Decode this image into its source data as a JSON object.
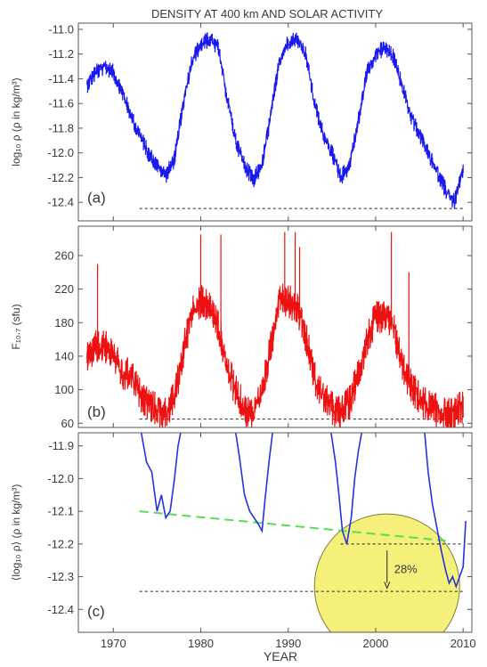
{
  "figure": {
    "title": "DENSITY AT 400 km AND SOLAR ACTIVITY",
    "xlabel": "YEAR"
  },
  "chart_data": [
    {
      "panel": "(a)",
      "type": "line",
      "ylabel": "log₁₀ ρ (ρ in kg/m³)",
      "ylim": [
        -12.55,
        -10.95
      ],
      "yticks": [
        -11.0,
        -11.2,
        -11.4,
        -11.6,
        -11.8,
        -12.0,
        -12.2,
        -12.4
      ],
      "ytick_labels": [
        "-11.0",
        "-11.2",
        "-11.4",
        "-11.6",
        "-11.8",
        "-12.0",
        "-12.2",
        "-12.4"
      ],
      "xlim": [
        1966,
        2011
      ],
      "color": "#1a1aee",
      "noise": 0.1,
      "x": [
        1967,
        1968,
        1969,
        1970,
        1971,
        1972,
        1973,
        1974,
        1975,
        1976,
        1977,
        1978,
        1979,
        1980,
        1981,
        1982,
        1983,
        1984,
        1985,
        1986,
        1987,
        1988,
        1989,
        1990,
        1991,
        1992,
        1993,
        1994,
        1995,
        1996,
        1997,
        1998,
        1999,
        2000,
        2001,
        2002,
        2003,
        2004,
        2005,
        2006,
        2007,
        2008,
        2009,
        2010
      ],
      "y": [
        -11.45,
        -11.35,
        -11.3,
        -11.35,
        -11.5,
        -11.7,
        -11.85,
        -12.0,
        -12.1,
        -12.18,
        -12.05,
        -11.6,
        -11.25,
        -11.12,
        -11.08,
        -11.15,
        -11.55,
        -11.9,
        -12.1,
        -12.22,
        -12.1,
        -11.7,
        -11.25,
        -11.1,
        -11.08,
        -11.2,
        -11.6,
        -11.85,
        -12.0,
        -12.2,
        -12.1,
        -11.75,
        -11.35,
        -11.2,
        -11.15,
        -11.22,
        -11.45,
        -11.7,
        -11.85,
        -12.0,
        -12.15,
        -12.3,
        -12.4,
        -12.15
      ],
      "reference_line": {
        "y": -12.45,
        "from_x": 1973,
        "to_x": 2010
      },
      "label_text": "(a)"
    },
    {
      "panel": "(b)",
      "type": "line",
      "ylabel": "F₁₀.₇ (sfu)",
      "ylim": [
        55,
        295
      ],
      "yticks": [
        60,
        100,
        140,
        180,
        220,
        260
      ],
      "ytick_labels": [
        "60",
        "100",
        "140",
        "180",
        "220",
        "260"
      ],
      "xlim": [
        1966,
        2011
      ],
      "color": "#ee1111",
      "noise": 30,
      "x": [
        1967,
        1968,
        1969,
        1970,
        1971,
        1972,
        1973,
        1974,
        1975,
        1976,
        1977,
        1978,
        1979,
        1980,
        1981,
        1982,
        1983,
        1984,
        1985,
        1986,
        1987,
        1988,
        1989,
        1990,
        1991,
        1992,
        1993,
        1994,
        1995,
        1996,
        1997,
        1998,
        1999,
        2000,
        2001,
        2002,
        2003,
        2004,
        2005,
        2006,
        2007,
        2008,
        2009,
        2010
      ],
      "y": [
        140,
        150,
        150,
        145,
        115,
        120,
        95,
        85,
        75,
        72,
        90,
        145,
        195,
        205,
        200,
        175,
        125,
        100,
        75,
        72,
        95,
        150,
        215,
        205,
        200,
        165,
        115,
        90,
        78,
        72,
        85,
        120,
        160,
        185,
        185,
        175,
        130,
        105,
        90,
        80,
        75,
        70,
        70,
        82
      ],
      "spikes": [
        [
          1968.2,
          250
        ],
        [
          1980.0,
          285
        ],
        [
          1982.3,
          285
        ],
        [
          1989.6,
          288
        ],
        [
          1990.8,
          288
        ],
        [
          1991.3,
          270
        ],
        [
          2001.8,
          288
        ],
        [
          2003.8,
          240
        ]
      ],
      "reference_line": {
        "y": 65,
        "from_x": 1973,
        "to_x": 2010
      },
      "label_text": "(b)"
    },
    {
      "panel": "(c)",
      "type": "line",
      "ylabel": "⟨log₁₀ ρ⟩ (ρ in kg/m³)",
      "ylim": [
        -12.47,
        -11.86
      ],
      "yticks": [
        -11.9,
        -12.0,
        -12.1,
        -12.2,
        -12.3,
        -12.4
      ],
      "ytick_labels": [
        "-11.9",
        "-12.0",
        "-12.1",
        "-12.2",
        "-12.3",
        "-12.4"
      ],
      "xlim": [
        1966,
        2011
      ],
      "xticks": [
        1970,
        1980,
        1990,
        2000,
        2010
      ],
      "xtick_labels": [
        "1970",
        "1980",
        "1990",
        "2000",
        "2010"
      ],
      "color": "#2233dd",
      "segments": [
        {
          "x": [
            1973.2,
            1973.8,
            1974.4,
            1975.0,
            1975.5,
            1976.0,
            1976.5,
            1977.0,
            1977.4,
            1977.7
          ],
          "y": [
            -11.86,
            -11.95,
            -11.98,
            -12.1,
            -12.05,
            -12.12,
            -12.1,
            -12.0,
            -11.9,
            -11.86
          ]
        },
        {
          "x": [
            1984.0,
            1984.4,
            1985.0,
            1985.6,
            1986.1,
            1986.6,
            1987.0,
            1987.4,
            1987.8,
            1988.2
          ],
          "y": [
            -11.86,
            -11.93,
            -12.05,
            -12.1,
            -12.12,
            -12.14,
            -12.16,
            -12.05,
            -11.95,
            -11.86
          ]
        },
        {
          "x": [
            1994.9,
            1995.4,
            1995.8,
            1996.2,
            1996.7,
            1997.2,
            1997.6,
            1998.0,
            1998.4
          ],
          "y": [
            -11.86,
            -11.95,
            -12.05,
            -12.16,
            -12.2,
            -12.12,
            -12.0,
            -11.92,
            -11.86
          ]
        },
        {
          "x": [
            2005.6,
            2006.0,
            2006.5,
            2007.0,
            2007.5,
            2008.0,
            2008.4,
            2008.8,
            2009.2,
            2009.6,
            2010.0,
            2010.3
          ],
          "y": [
            -11.86,
            -11.98,
            -12.08,
            -12.15,
            -12.22,
            -12.28,
            -12.32,
            -12.3,
            -12.33,
            -12.3,
            -12.27,
            -12.13
          ]
        }
      ],
      "trend_line": {
        "color": "#55dd55",
        "from": [
          1973,
          -12.1
        ],
        "to": [
          2008,
          -12.19
        ]
      },
      "reference_lines": [
        {
          "y": -12.2,
          "from_x": 1996,
          "to_x": 2010
        },
        {
          "y": -12.345,
          "from_x": 1973,
          "to_x": 2010
        }
      ],
      "highlight_circle": {
        "color": "#f5f07a",
        "center_x": 2001.3,
        "center_y": -12.33,
        "radius_x": 8.3
      },
      "arrow": {
        "x": 2001.3,
        "from_y": -12.22,
        "to_y": -12.335
      },
      "annotation": "28%",
      "label_text": "(c)"
    }
  ]
}
